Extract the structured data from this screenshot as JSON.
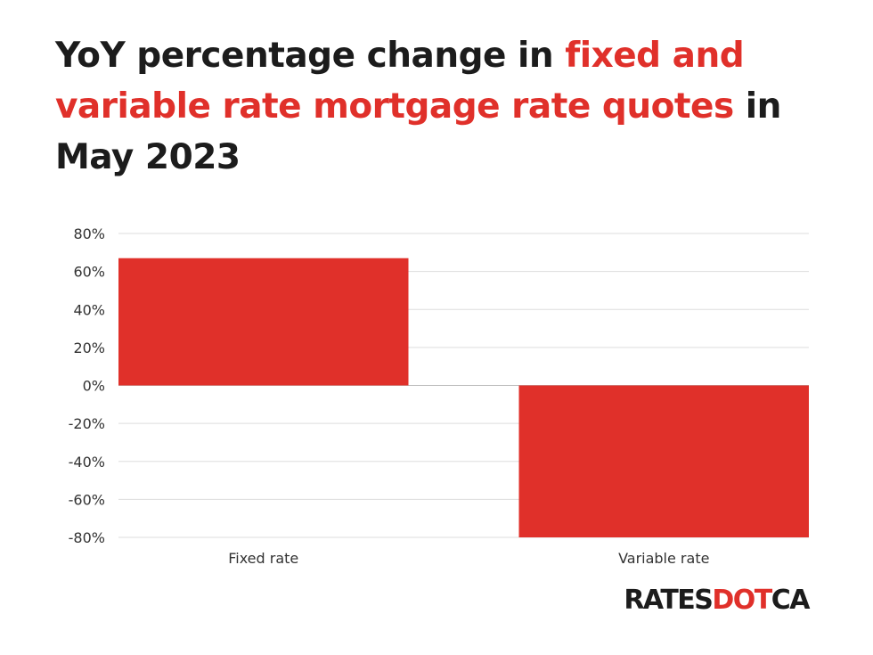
{
  "title": {
    "part1": "YoY percentage change in ",
    "highlight1": "fixed and variable rate mortgage rate quotes",
    "part2": " in May 2023"
  },
  "logo": {
    "part1": "RATES",
    "part2": "DOT",
    "part3": "CA"
  },
  "colors": {
    "accent": "#e0302a",
    "text": "#1c1c1c",
    "grid": "#dddddd"
  },
  "chart_data": {
    "type": "bar",
    "categories": [
      "Fixed rate",
      "Variable rate"
    ],
    "values": [
      67,
      -80
    ],
    "ylim": [
      -80,
      80
    ],
    "yticks": [
      80,
      60,
      40,
      20,
      0,
      -20,
      -40,
      -60,
      -80
    ],
    "ytick_labels": [
      "80%",
      "60%",
      "40%",
      "20%",
      "0%",
      "-20%",
      "-40%",
      "-60%",
      "-80%"
    ],
    "xlabel": "",
    "ylabel": "",
    "grid": true,
    "legend": "none"
  }
}
